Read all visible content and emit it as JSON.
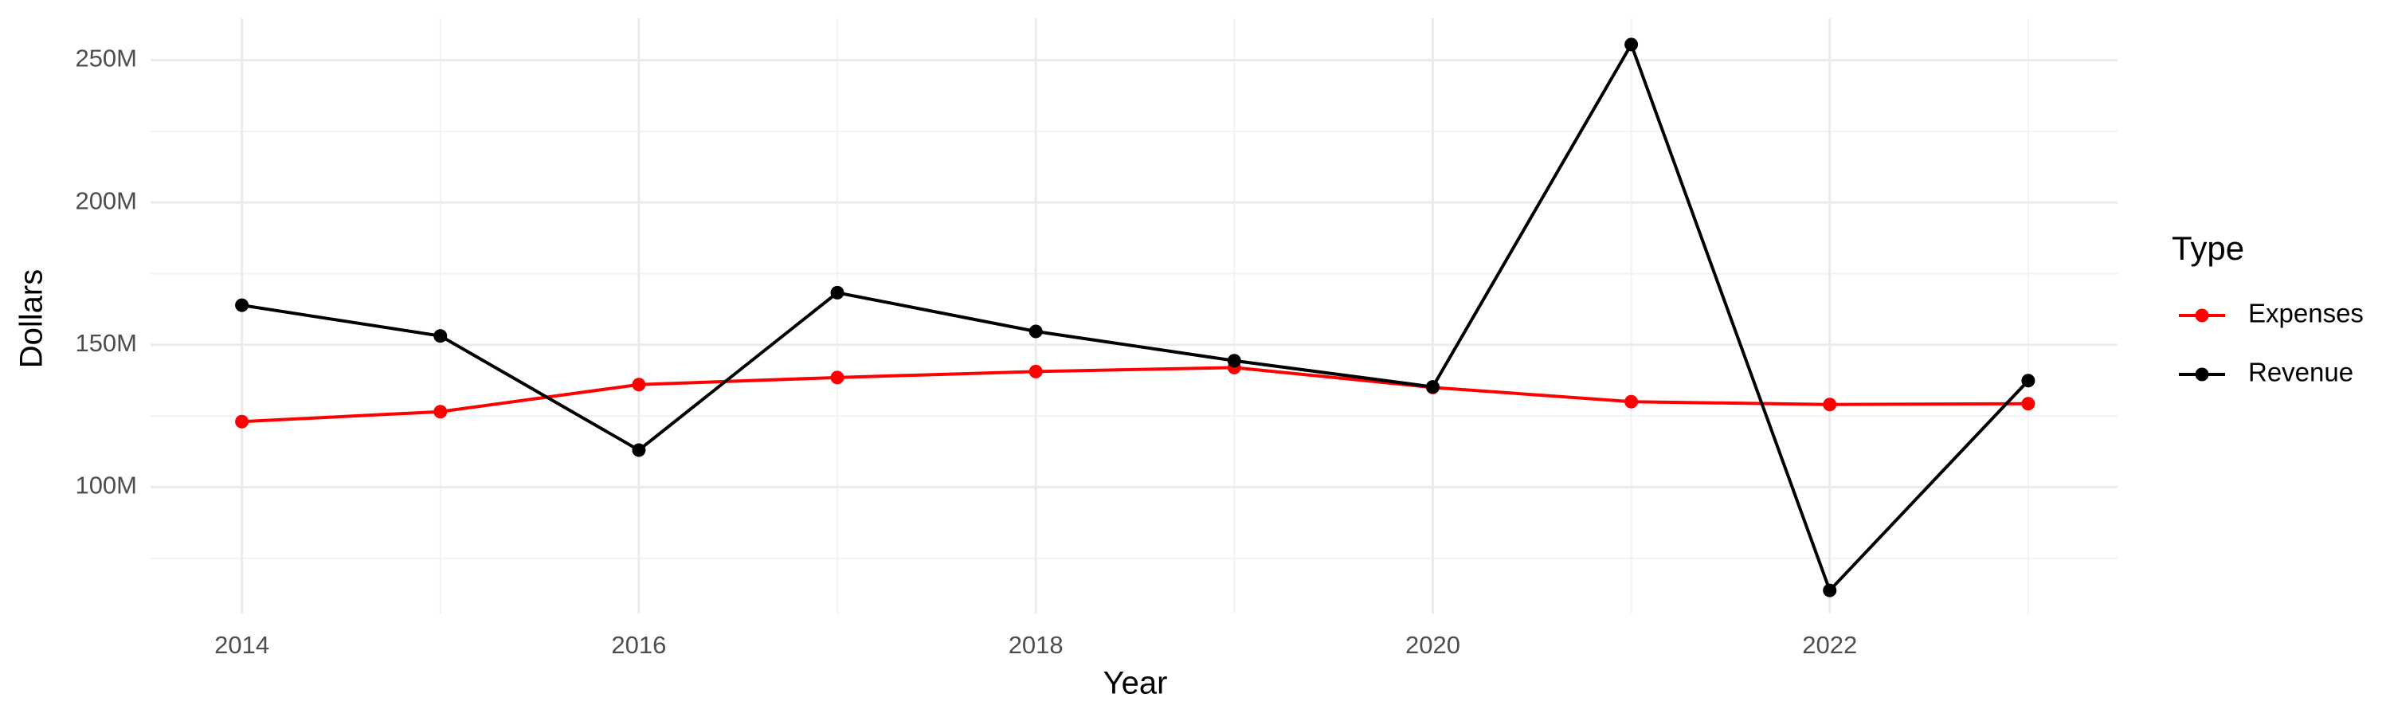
{
  "chart_data": {
    "type": "line",
    "x_label": "Year",
    "y_label": "Dollars",
    "legend_title": "Type",
    "x": [
      2014,
      2015,
      2016,
      2017,
      2018,
      2019,
      2020,
      2021,
      2022,
      2023
    ],
    "series": [
      {
        "name": "Expenses",
        "color": "#ff0000",
        "values": [
          123000000,
          126500000,
          136000000,
          138500000,
          140600000,
          142000000,
          135000000,
          130000000,
          129000000,
          129300000
        ]
      },
      {
        "name": "Revenue",
        "color": "#000000",
        "values": [
          163900000,
          153100000,
          113000000,
          168300000,
          154700000,
          144400000,
          135200000,
          255500000,
          63700000,
          137400000
        ]
      }
    ],
    "xlim": [
      2013.54,
      2023.45
    ],
    "xticks": [
      2014,
      2016,
      2018,
      2020,
      2022
    ],
    "ylim": [
      55600000,
      264700000
    ],
    "yticks": [
      {
        "value": 100000000,
        "label": "100M"
      },
      {
        "value": 150000000,
        "label": "150M"
      },
      {
        "value": 200000000,
        "label": "200M"
      },
      {
        "value": 250000000,
        "label": "250M"
      }
    ],
    "grid": true,
    "legend_position": "right"
  }
}
